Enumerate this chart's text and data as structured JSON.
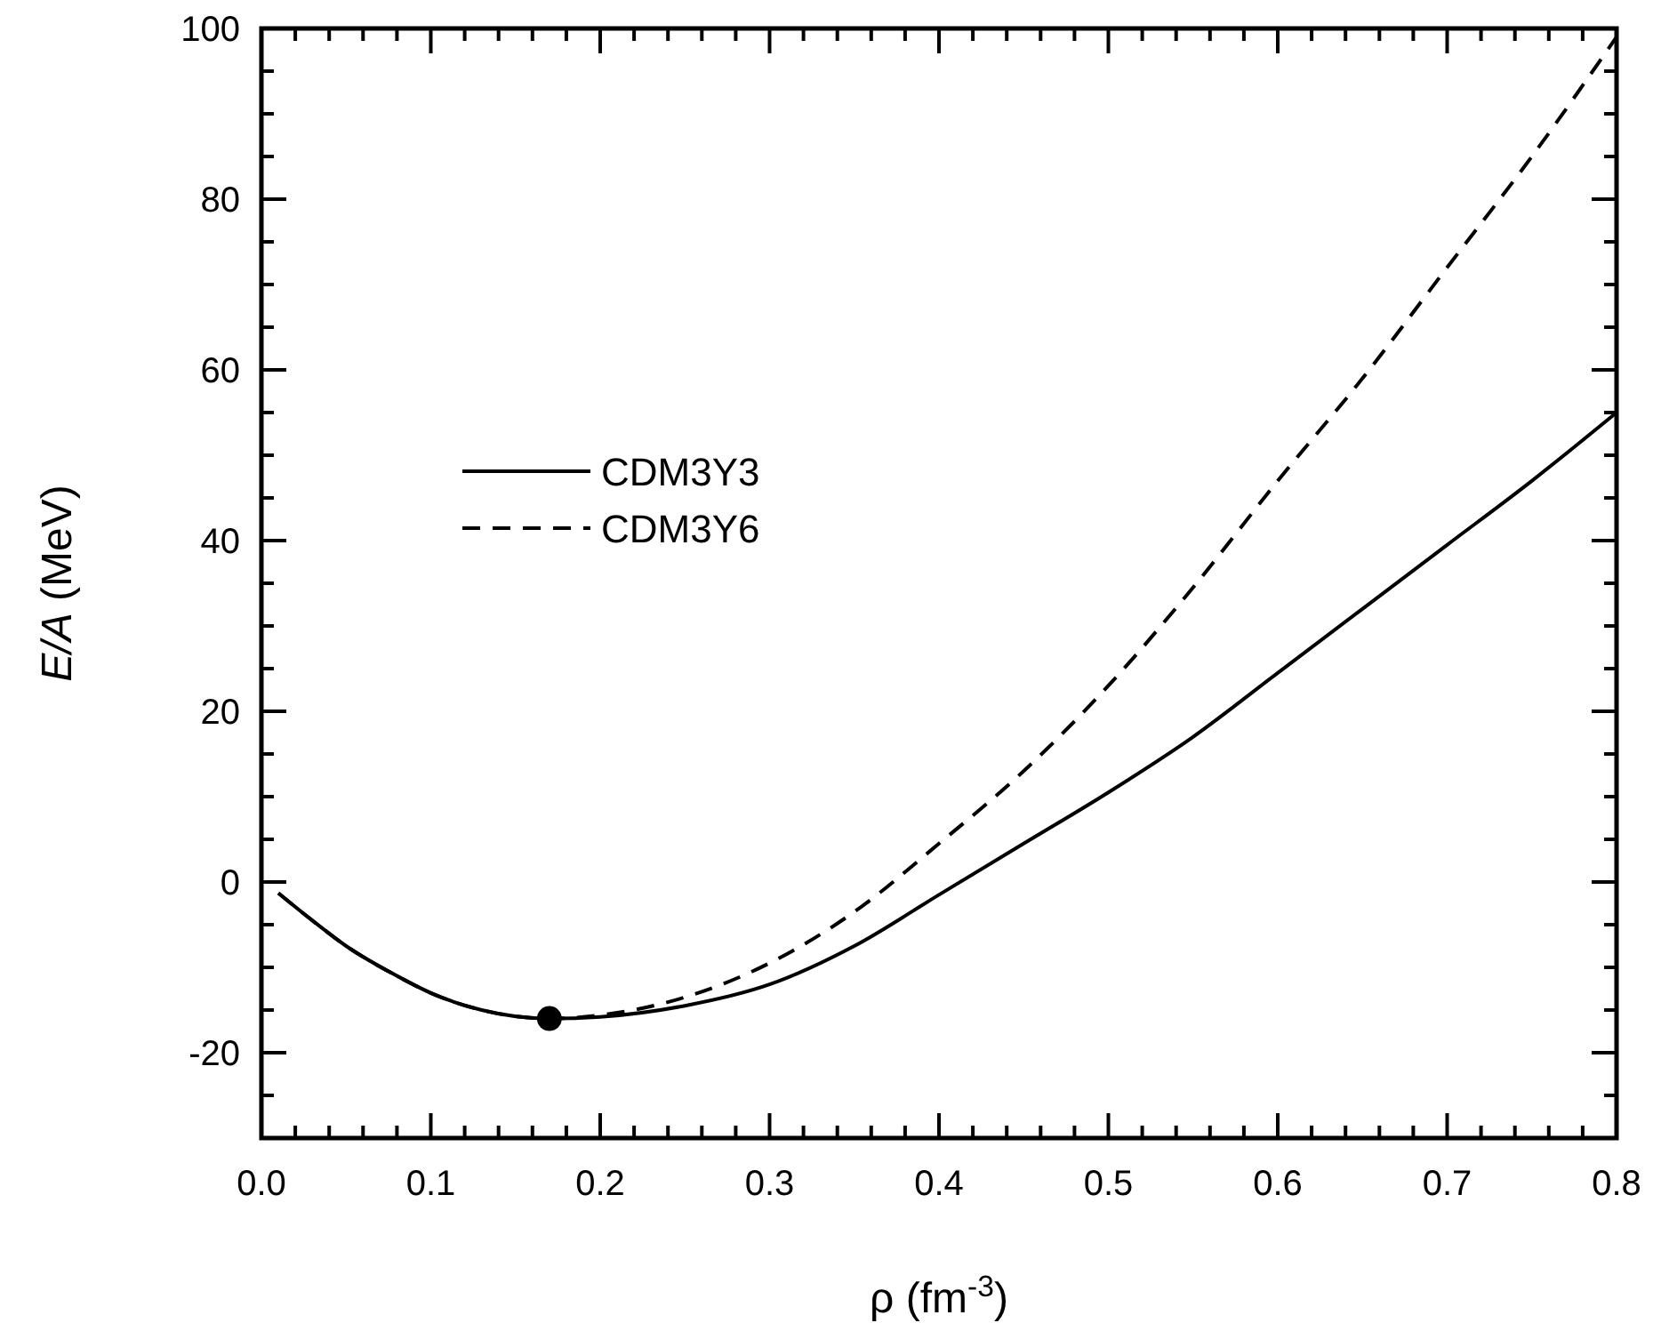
{
  "chart_data": {
    "type": "line",
    "xlabel": "ρ (fm$^{-3}$)",
    "ylabel": "E/A (MeV)",
    "xlim": [
      0,
      0.8
    ],
    "ylim": [
      -30,
      100
    ],
    "xticks": [
      {
        "value": 0,
        "label": "0.0"
      },
      {
        "value": 0.02,
        "label": null
      },
      {
        "value": 0.04,
        "label": null
      },
      {
        "value": 0.06,
        "label": null
      },
      {
        "value": 0.08,
        "label": null
      },
      {
        "value": 0.1,
        "label": "0.1"
      },
      {
        "value": 0.12,
        "label": null
      },
      {
        "value": 0.14,
        "label": null
      },
      {
        "value": 0.16,
        "label": null
      },
      {
        "value": 0.18,
        "label": null
      },
      {
        "value": 0.2,
        "label": "0.2"
      },
      {
        "value": 0.22,
        "label": null
      },
      {
        "value": 0.24,
        "label": null
      },
      {
        "value": 0.26,
        "label": null
      },
      {
        "value": 0.28,
        "label": null
      },
      {
        "value": 0.3,
        "label": "0.3"
      },
      {
        "value": 0.32,
        "label": null
      },
      {
        "value": 0.34,
        "label": null
      },
      {
        "value": 0.36,
        "label": null
      },
      {
        "value": 0.38,
        "label": null
      },
      {
        "value": 0.4,
        "label": "0.4"
      },
      {
        "value": 0.42,
        "label": null
      },
      {
        "value": 0.44,
        "label": null
      },
      {
        "value": 0.46,
        "label": null
      },
      {
        "value": 0.48,
        "label": null
      },
      {
        "value": 0.5,
        "label": "0.5"
      },
      {
        "value": 0.52,
        "label": null
      },
      {
        "value": 0.54,
        "label": null
      },
      {
        "value": 0.56,
        "label": null
      },
      {
        "value": 0.58,
        "label": null
      },
      {
        "value": 0.6,
        "label": "0.6"
      },
      {
        "value": 0.62,
        "label": null
      },
      {
        "value": 0.64,
        "label": null
      },
      {
        "value": 0.66,
        "label": null
      },
      {
        "value": 0.68,
        "label": null
      },
      {
        "value": 0.7,
        "label": "0.7"
      },
      {
        "value": 0.72,
        "label": null
      },
      {
        "value": 0.74,
        "label": null
      },
      {
        "value": 0.76,
        "label": null
      },
      {
        "value": 0.78,
        "label": null
      },
      {
        "value": 0.8,
        "label": "0.8"
      }
    ],
    "yticks": [
      {
        "value": -30,
        "label": null
      },
      {
        "value": -25,
        "label": null
      },
      -20,
      {
        "value": -15,
        "label": null
      },
      {
        "value": -10,
        "label": null
      },
      {
        "value": -5,
        "label": null
      },
      0,
      {
        "value": 5,
        "label": null
      },
      {
        "value": 10,
        "label": null
      },
      {
        "value": 15,
        "label": null
      },
      20,
      {
        "value": 25,
        "label": null
      },
      {
        "value": 30,
        "label": null
      },
      {
        "value": 35,
        "label": null
      },
      40,
      {
        "value": 45,
        "label": null
      },
      {
        "value": 50,
        "label": null
      },
      {
        "value": 55,
        "label": null
      },
      60,
      {
        "value": 65,
        "label": null
      },
      {
        "value": 70,
        "label": null
      },
      {
        "value": 75,
        "label": null
      },
      80,
      {
        "value": 85,
        "label": null
      },
      {
        "value": 90,
        "label": null
      },
      {
        "value": 95,
        "label": null
      },
      100
    ],
    "legend": "left",
    "grid": false,
    "series": [
      {
        "name": "CDM3Y3",
        "color": "#000000",
        "line_style": "solid",
        "x": [
          0.01,
          0.03,
          0.05,
          0.08,
          0.1,
          0.13,
          0.17,
          0.2,
          0.25,
          0.3,
          0.35,
          0.4,
          0.45,
          0.5,
          0.55,
          0.6,
          0.65,
          0.7,
          0.75,
          0.8
        ],
        "values": [
          -1.3,
          -4.5,
          -7.5,
          -11,
          -13,
          -15,
          -16,
          -15.8,
          -14.5,
          -12,
          -7.5,
          -1.5,
          4.5,
          10.5,
          17,
          24.5,
          32,
          39.5,
          47,
          55
        ]
      },
      {
        "name": "CDM3Y6",
        "color": "#000000",
        "line_style": "dashed",
        "x": [
          0.01,
          0.03,
          0.05,
          0.08,
          0.1,
          0.13,
          0.17,
          0.2,
          0.25,
          0.3,
          0.35,
          0.4,
          0.45,
          0.5,
          0.55,
          0.6,
          0.65,
          0.7,
          0.75,
          0.8
        ],
        "values": [
          -1.3,
          -4.5,
          -7.5,
          -11,
          -13,
          -15,
          -16,
          -15.6,
          -13.5,
          -9.5,
          -3.5,
          4.5,
          13,
          23,
          34.5,
          47,
          59,
          72,
          85,
          99
        ]
      },
      {
        "type": "scatter",
        "color": "#000000",
        "marker": "circle",
        "x": [
          0.17
        ],
        "values": [
          -16
        ]
      }
    ]
  }
}
